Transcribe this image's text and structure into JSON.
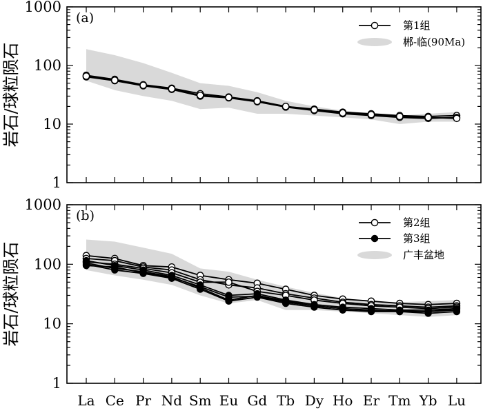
{
  "chart_data": [
    {
      "panel_tag": "(a)",
      "type": "line",
      "yscale": "log",
      "ylim": [
        1,
        1000
      ],
      "yticks": [
        "1",
        "10",
        "100",
        "1000"
      ],
      "ylabel": "岩石/球粒陨石",
      "categories": [
        "La",
        "Ce",
        "Pr",
        "Nd",
        "Sm",
        "Eu",
        "Gd",
        "Tb",
        "Dy",
        "Ho",
        "Er",
        "Tm",
        "Yb",
        "Lu"
      ],
      "band": {
        "name": "郴-临(90Ma)",
        "upper": [
          190,
          150,
          110,
          75,
          50,
          45,
          35,
          25,
          20,
          17,
          15,
          14,
          15,
          16
        ],
        "lower": [
          55,
          38,
          30,
          25,
          18,
          19,
          15,
          15,
          14,
          13,
          12,
          10,
          11,
          11
        ]
      },
      "groups": [
        {
          "name": "第1组",
          "marker": "open",
          "series": [
            {
              "values": [
                68,
                58,
                47,
                41,
                33,
                29,
                25,
                20,
                18,
                16,
                15,
                14,
                13.5,
                14
              ]
            },
            {
              "values": [
                64,
                55,
                45,
                39,
                30,
                28,
                24,
                19.5,
                17,
                15,
                14,
                13,
                12.5,
                13
              ]
            },
            {
              "values": [
                66,
                56,
                46,
                40,
                31,
                28.5,
                24.5,
                20,
                17.5,
                15.5,
                14.5,
                13.5,
                13,
                12.5
              ]
            }
          ]
        }
      ]
    },
    {
      "panel_tag": "(b)",
      "type": "line",
      "yscale": "log",
      "ylim": [
        1,
        1000
      ],
      "yticks": [
        "1",
        "10",
        "100",
        "1000"
      ],
      "ylabel": "岩石/球粒陨石",
      "categories": [
        "La",
        "Ce",
        "Pr",
        "Nd",
        "Sm",
        "Eu",
        "Gd",
        "Tb",
        "Dy",
        "Ho",
        "Er",
        "Tm",
        "Yb",
        "Lu"
      ],
      "band": {
        "name": "广丰盆地",
        "upper": [
          260,
          240,
          190,
          150,
          85,
          75,
          55,
          42,
          33,
          27,
          24,
          23,
          24,
          25
        ],
        "lower": [
          80,
          65,
          55,
          45,
          30,
          22,
          25,
          17,
          17,
          16,
          15,
          14,
          13,
          14
        ]
      },
      "groups": [
        {
          "name": "第2组",
          "marker": "open",
          "series": [
            {
              "values": [
                140,
                125,
                95,
                90,
                65,
                55,
                48,
                38,
                30,
                26,
                24,
                22,
                21,
                22
              ]
            },
            {
              "values": [
                125,
                115,
                90,
                80,
                55,
                45,
                40,
                32,
                27,
                23,
                21,
                20,
                19,
                20
              ]
            },
            {
              "values": [
                110,
                100,
                85,
                72,
                50,
                50,
                35,
                30,
                25,
                22,
                20,
                19,
                18,
                19
              ]
            }
          ]
        },
        {
          "name": "第3组",
          "marker": "filled",
          "series": [
            {
              "values": [
                105,
                85,
                75,
                62,
                40,
                25,
                30,
                24,
                20,
                18,
                17,
                16,
                16,
                17
              ]
            },
            {
              "values": [
                100,
                80,
                70,
                58,
                38,
                24,
                28,
                22,
                19,
                17,
                16,
                16,
                15,
                16
              ]
            },
            {
              "values": [
                95,
                90,
                72,
                60,
                42,
                28,
                29,
                23,
                20,
                18,
                16.5,
                16.5,
                16,
                18
              ]
            },
            {
              "values": [
                115,
                95,
                80,
                65,
                45,
                30,
                32,
                25,
                21,
                19,
                18,
                17,
                17,
                18
              ]
            }
          ]
        }
      ]
    }
  ]
}
